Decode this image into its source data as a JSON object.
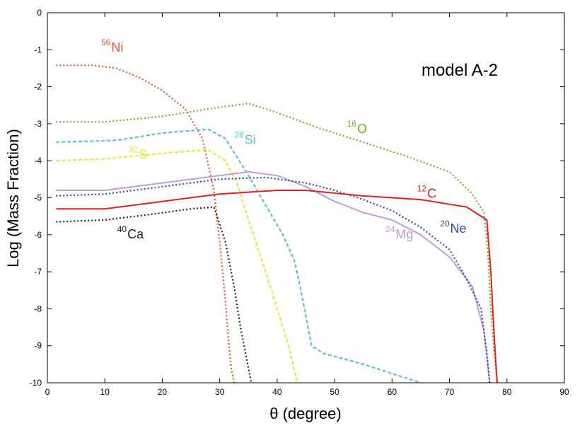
{
  "chart_data": {
    "type": "line",
    "title": "model A-2",
    "xlabel": "θ (degree)",
    "ylabel": "Log (Mass Fraction)",
    "xlim": [
      0,
      90
    ],
    "ylim": [
      -10,
      0
    ],
    "xticks": [
      0,
      10,
      20,
      30,
      40,
      50,
      60,
      70,
      80,
      90
    ],
    "yticks": [
      0,
      -1,
      -2,
      -3,
      -4,
      -5,
      -6,
      -7,
      -8,
      -9,
      -10
    ],
    "grid": false,
    "series": [
      {
        "name": "56Ni",
        "mass": "56",
        "element": "Ni",
        "color": "#e8552a",
        "style": "dotted",
        "x": [
          1.5,
          8,
          12,
          16,
          20,
          24,
          27,
          29,
          30,
          31,
          31.5,
          32,
          32.5
        ],
        "y": [
          -1.42,
          -1.42,
          -1.5,
          -1.75,
          -2.1,
          -2.6,
          -3.4,
          -4.8,
          -6.2,
          -7.8,
          -8.8,
          -9.6,
          -10
        ]
      },
      {
        "name": "16O",
        "mass": "16",
        "element": "O",
        "color": "#6fae2b",
        "style": "dotted",
        "x": [
          1.5,
          10,
          20,
          28,
          35,
          40,
          47,
          55,
          62,
          70,
          74,
          76,
          76.7,
          77.2,
          77.8,
          78.3
        ],
        "y": [
          -2.95,
          -2.95,
          -2.8,
          -2.6,
          -2.45,
          -2.7,
          -3.1,
          -3.5,
          -3.85,
          -4.3,
          -4.9,
          -5.4,
          -6.5,
          -8.0,
          -9.2,
          -10
        ]
      },
      {
        "name": "28Si",
        "mass": "28",
        "element": "Si",
        "color": "#5cbfd8",
        "style": "dashed",
        "x": [
          1.5,
          12,
          20,
          28,
          31,
          33,
          35,
          38,
          41,
          43,
          44,
          46,
          48,
          55,
          60,
          65
        ],
        "y": [
          -3.5,
          -3.45,
          -3.25,
          -3.15,
          -3.4,
          -3.9,
          -4.4,
          -5.2,
          -6.0,
          -6.7,
          -7.4,
          -9.0,
          -9.2,
          -9.5,
          -9.75,
          -10
        ]
      },
      {
        "name": "32S",
        "mass": "32",
        "element": "S",
        "color": "#f0e23a",
        "style": "dashed",
        "x": [
          1.5,
          10,
          20,
          28,
          31,
          33,
          35,
          38,
          40,
          42,
          43.5
        ],
        "y": [
          -4.0,
          -3.95,
          -3.8,
          -3.7,
          -4.0,
          -4.6,
          -5.6,
          -7.0,
          -8.0,
          -9.0,
          -10
        ]
      },
      {
        "name": "24Mg",
        "mass": "24",
        "element": "Mg",
        "color": "#c89ad6",
        "style": "solid",
        "x": [
          1.5,
          10,
          20,
          30,
          35,
          40,
          45,
          50,
          55,
          60,
          65,
          70,
          74,
          76,
          76.5,
          77
        ],
        "y": [
          -4.8,
          -4.8,
          -4.6,
          -4.4,
          -4.3,
          -4.4,
          -4.7,
          -5.1,
          -5.4,
          -5.6,
          -6.0,
          -6.6,
          -7.4,
          -8.6,
          -9.3,
          -10
        ]
      },
      {
        "name": "20Ne",
        "mass": "20",
        "element": "Ne",
        "color": "#2a4aa8",
        "style": "dotted",
        "x": [
          1.5,
          10,
          20,
          30,
          38,
          45,
          50,
          55,
          60,
          65,
          70,
          73,
          75.5,
          76.5,
          77
        ],
        "y": [
          -4.95,
          -4.9,
          -4.7,
          -4.5,
          -4.45,
          -4.6,
          -4.8,
          -5.05,
          -5.35,
          -5.8,
          -6.4,
          -7.2,
          -8.0,
          -9.2,
          -10
        ]
      },
      {
        "name": "12C",
        "mass": "12",
        "element": "C",
        "color": "#e02020",
        "style": "solid",
        "x": [
          1.5,
          10,
          20,
          30,
          40,
          45,
          55,
          65,
          73,
          76.5,
          77.2,
          77.8,
          78.3
        ],
        "y": [
          -5.3,
          -5.3,
          -5.1,
          -4.9,
          -4.8,
          -4.8,
          -4.95,
          -5.05,
          -5.25,
          -5.6,
          -7.0,
          -8.8,
          -10
        ]
      },
      {
        "name": "40Ca",
        "mass": "40",
        "element": "Ca",
        "color": "#222222",
        "style": "dotted",
        "x": [
          1.5,
          10,
          18,
          25,
          29,
          31,
          32.5,
          33.5,
          34.5,
          35.5
        ],
        "y": [
          -5.65,
          -5.6,
          -5.45,
          -5.3,
          -5.25,
          -6.2,
          -7.4,
          -8.4,
          -9.2,
          -10
        ]
      }
    ],
    "annotations": [
      {
        "series": "56Ni",
        "mass": "56",
        "element": "Ni",
        "x": 11,
        "y": -1.05
      },
      {
        "series": "28Si",
        "mass": "28",
        "element": "Si",
        "x": 34.2,
        "y": -3.55
      },
      {
        "series": "32S",
        "mass": "32",
        "element": "S",
        "x": 15.8,
        "y": -3.95
      },
      {
        "series": "16O",
        "mass": "16",
        "element": "O",
        "x": 53.8,
        "y": -3.25
      },
      {
        "series": "12C",
        "mass": "12",
        "element": "C",
        "x": 66,
        "y": -5.0
      },
      {
        "series": "20Ne",
        "mass": "20",
        "element": "Ne",
        "x": 70,
        "y": -5.95
      },
      {
        "series": "24Mg",
        "mass": "24",
        "element": "Mg",
        "x": 60.5,
        "y": -6.1
      },
      {
        "series": "40Ca",
        "mass": "40",
        "element": "Ca",
        "x": 13.8,
        "y": -6.1
      }
    ]
  }
}
